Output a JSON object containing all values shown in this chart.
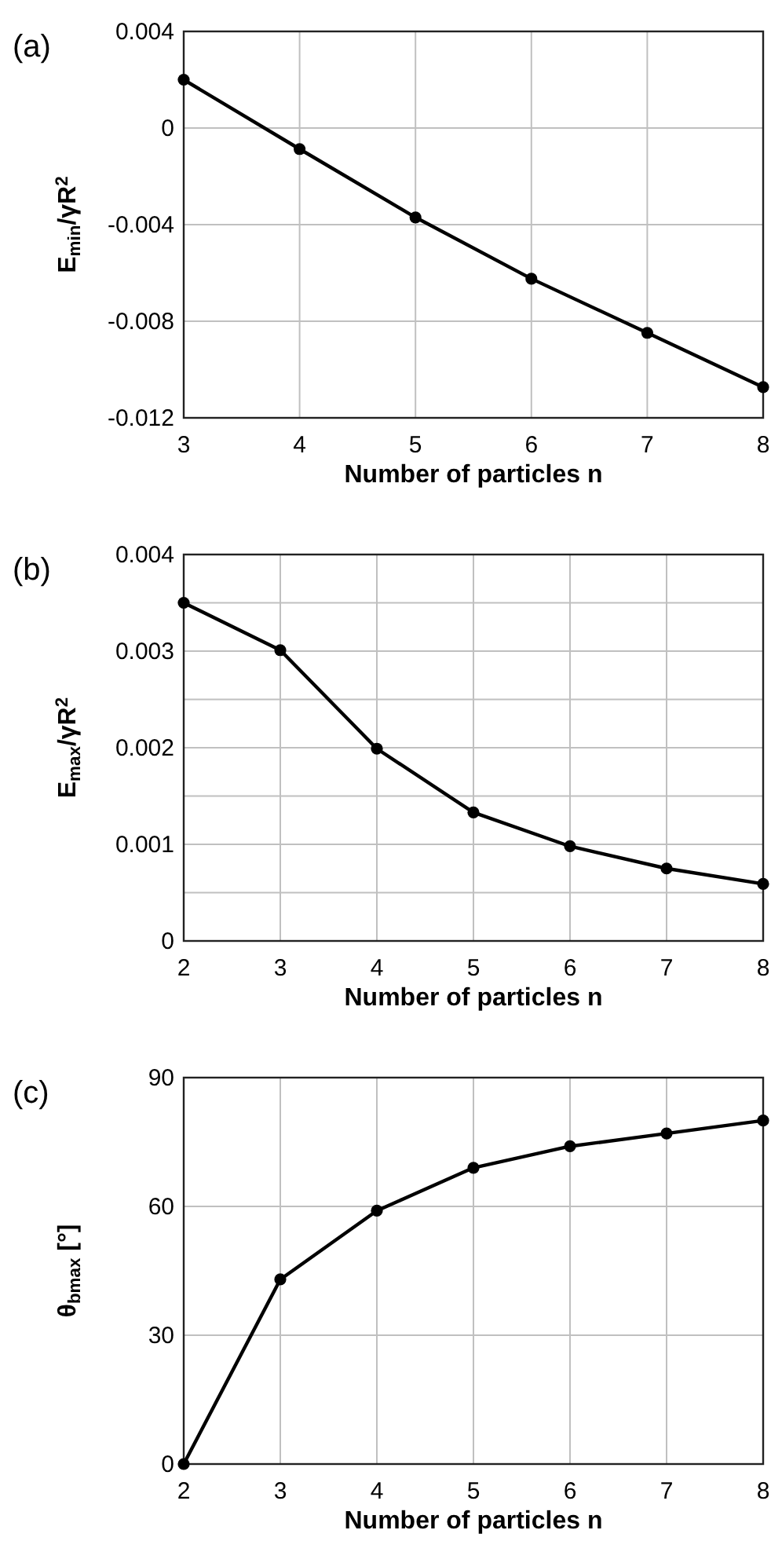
{
  "chart_data": [
    {
      "type": "line",
      "title": "(a)",
      "xlabel": "Number of particles n",
      "ylabel": "E$_{min}$/γR$^{2}$",
      "x": [
        3,
        4,
        5,
        6,
        7,
        8
      ],
      "xlim": [
        3,
        8
      ],
      "xticks": [
        3,
        4,
        5,
        6,
        7,
        8
      ],
      "ylim": [
        -0.012,
        0.004
      ],
      "yticks": [
        -0.012,
        -0.008,
        -0.004,
        0,
        0.004
      ],
      "grid": true,
      "marker": "circle",
      "line_style": "solid",
      "series": [
        {
          "color": "#000000",
          "values": [
            0.002,
            -0.00087,
            -0.0037,
            -0.00624,
            -0.00848,
            -0.01073
          ]
        }
      ]
    },
    {
      "type": "line",
      "title": "(b)",
      "xlabel": "Number of particles n",
      "ylabel": "E$_{max}$/γR$^{2}$",
      "x": [
        2,
        3,
        4,
        5,
        6,
        7,
        8
      ],
      "xlim": [
        2,
        8
      ],
      "xticks": [
        2,
        3,
        4,
        5,
        6,
        7,
        8
      ],
      "ylim": [
        0,
        0.004
      ],
      "yticks": [
        0,
        {
          "value": 0.0005,
          "label": null
        },
        0.001,
        {
          "value": 0.0015,
          "label": null
        },
        0.002,
        {
          "value": 0.0025,
          "label": null
        },
        0.003,
        {
          "value": 0.0035,
          "label": null
        },
        0.004
      ],
      "grid": true,
      "marker": "circle",
      "line_style": "solid",
      "series": [
        {
          "color": "#000000",
          "values": [
            0.0035,
            0.00301,
            0.00199,
            0.00133,
            0.00098,
            0.00075,
            0.00059
          ]
        }
      ]
    },
    {
      "type": "line",
      "title": "(c)",
      "xlabel": "Number of particles n",
      "ylabel": "θ$_{bmax}$ [°]",
      "x": [
        2,
        3,
        4,
        5,
        6,
        7,
        8
      ],
      "xlim": [
        2,
        8
      ],
      "xticks": [
        2,
        3,
        4,
        5,
        6,
        7,
        8
      ],
      "ylim": [
        0,
        90
      ],
      "yticks": [
        0,
        30,
        60,
        90
      ],
      "grid": true,
      "marker": "circle",
      "line_style": "solid",
      "series": [
        {
          "color": "#000000",
          "values": [
            0,
            43,
            59,
            69,
            74,
            77,
            80
          ]
        }
      ]
    }
  ]
}
